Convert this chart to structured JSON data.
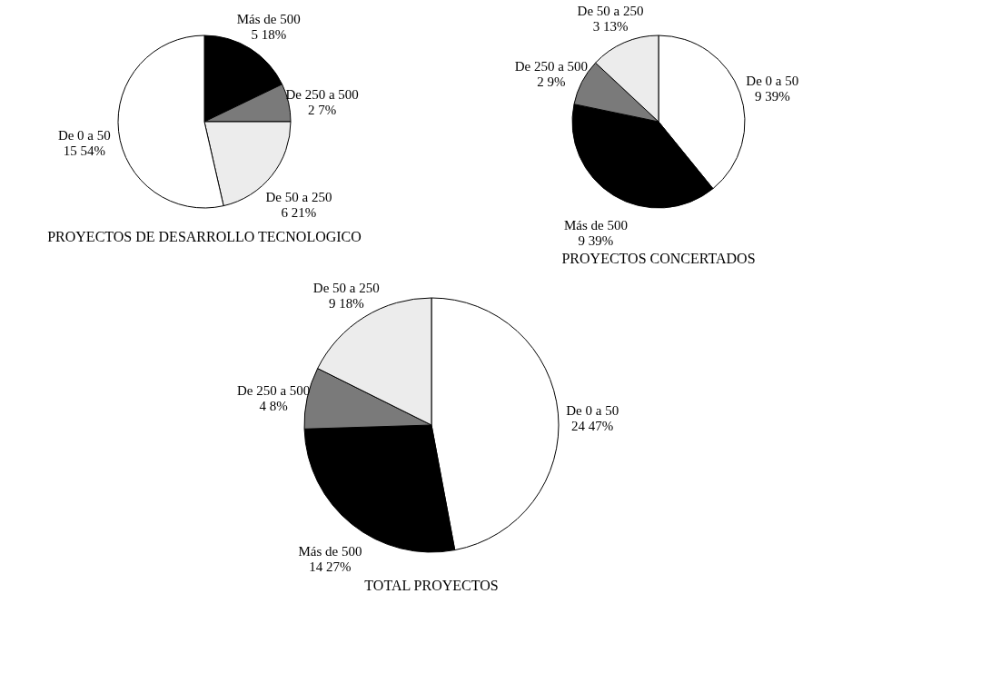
{
  "chart_data": [
    {
      "type": "pie",
      "title": "PROYECTOS DE DESARROLLO TECNOLOGICO",
      "categories": [
        "Más de 500",
        "De 250 a 500",
        "De 50 a 250",
        "De 0 a 50"
      ],
      "values": [
        5,
        2,
        6,
        15
      ],
      "colors": [
        "#000000",
        "#7a7a7a",
        "#ececec",
        "#ffffff"
      ],
      "value_labels": [
        "5  18%",
        "2  7%",
        "6  21%",
        "15  54%"
      ]
    },
    {
      "type": "pie",
      "title": "PROYECTOS CONCERTADOS",
      "categories": [
        "De 0 a 50",
        "Más de 500",
        "De 250 a 500",
        "De 50 a 250"
      ],
      "values": [
        9,
        9,
        2,
        3
      ],
      "colors": [
        "#ffffff",
        "#000000",
        "#7a7a7a",
        "#ececec"
      ],
      "value_labels": [
        "9  39%",
        "9  39%",
        "2  9%",
        "3  13%"
      ]
    },
    {
      "type": "pie",
      "title": "TOTAL PROYECTOS",
      "categories": [
        "De 0 a 50",
        "Más de 500",
        "De 250 a 500",
        "De 50 a 250"
      ],
      "values": [
        24,
        14,
        4,
        9
      ],
      "colors": [
        "#ffffff",
        "#000000",
        "#7a7a7a",
        "#ececec"
      ],
      "value_labels": [
        "24  47%",
        "14  27%",
        "4  8%",
        "9  18%"
      ]
    }
  ]
}
